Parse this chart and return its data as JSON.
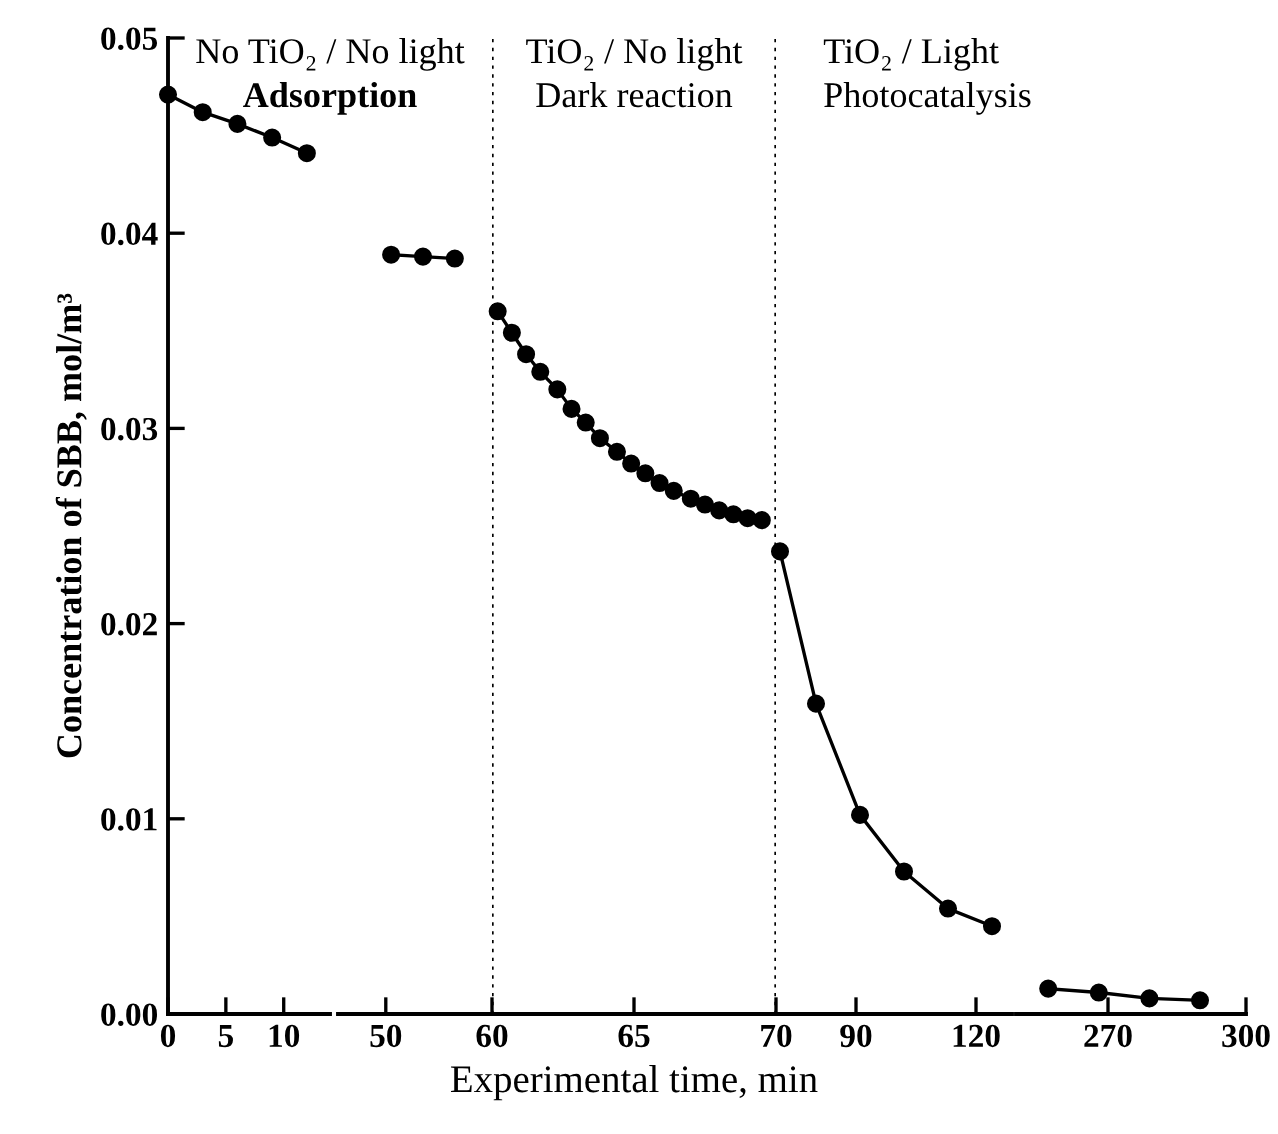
{
  "chart_data": [
    {
      "type": "line",
      "xlim": [
        0,
        14
      ],
      "xticks": [
        0,
        5,
        10
      ],
      "ylim": [
        0,
        0.05
      ],
      "yticks": [
        {
          "value": 0,
          "label": "0.00"
        },
        {
          "value": 0.01,
          "label": "0.01"
        },
        {
          "value": 0.02,
          "label": "0.02"
        },
        {
          "value": 0.03,
          "label": "0.03"
        },
        {
          "value": 0.04,
          "label": "0.04"
        },
        {
          "value": 0.05,
          "label": "0.05"
        }
      ],
      "ylabel": "Concentration of SBB, mol/m³",
      "marker": "circle",
      "grid": false,
      "legend": false,
      "x": [
        0,
        3,
        6,
        9,
        12
      ],
      "series": [
        {
          "color": "#000000",
          "values": [
            0.0471,
            0.0462,
            0.0456,
            0.0449,
            0.0441
          ]
        }
      ],
      "annotations": [
        "No TiO₂ / No light",
        "Adsorption"
      ]
    },
    {
      "type": "line",
      "xlim": [
        45.5,
        60
      ],
      "xticks": [
        50,
        60
      ],
      "ylim": [
        0,
        0.05
      ],
      "tick_labels": "x",
      "marker": "circle",
      "grid": false,
      "legend": false,
      "x": [
        50.5,
        53.5,
        56.5
      ],
      "series": [
        {
          "color": "#000000",
          "values": [
            0.0389,
            0.0388,
            0.0387
          ]
        }
      ]
    },
    {
      "type": "line",
      "xlim": [
        60,
        70
      ],
      "xticks": [
        65,
        70
      ],
      "ylim": [
        0,
        0.05
      ],
      "tick_labels": "x",
      "xlabel": "Experimental time, min",
      "marker": "circle",
      "grid": false,
      "legend": false,
      "x": [
        60.2,
        60.7,
        61.2,
        61.7,
        62.3,
        62.8,
        63.3,
        63.8,
        64.4,
        64.9,
        65.4,
        65.9,
        66.4,
        67.0,
        67.5,
        68.0,
        68.5,
        69.0,
        69.5
      ],
      "series": [
        {
          "color": "#000000",
          "values": [
            0.036,
            0.0349,
            0.0338,
            0.0329,
            0.032,
            0.031,
            0.0303,
            0.0295,
            0.0288,
            0.0282,
            0.0277,
            0.0272,
            0.0268,
            0.0264,
            0.0261,
            0.0258,
            0.0256,
            0.0254,
            0.0253
          ]
        }
      ],
      "ref_lines": [
        {
          "axis": "x",
          "value": 60,
          "color": "#000000",
          "line_style": "dotted"
        },
        {
          "axis": "x",
          "value": 70,
          "color": "#000000",
          "line_style": "dotted"
        }
      ],
      "annotations": [
        "TiO₂ / No light",
        "Dark reaction"
      ]
    },
    {
      "type": "line",
      "xlim": [
        70,
        129
      ],
      "xticks": [
        90,
        120
      ],
      "ylim": [
        0,
        0.05
      ],
      "tick_labels": "x",
      "marker": "circle",
      "grid": false,
      "legend": false,
      "x": [
        71,
        80,
        91,
        102,
        113,
        124
      ],
      "series": [
        {
          "color": "#000000",
          "values": [
            0.0237,
            0.0159,
            0.0102,
            0.0073,
            0.0054,
            0.0045
          ]
        }
      ],
      "annotations": [
        "TiO₂ / Light",
        "Photocatalysis"
      ]
    },
    {
      "type": "line",
      "xlim": [
        250,
        300
      ],
      "xticks": [
        270,
        300
      ],
      "ylim": [
        0,
        0.05
      ],
      "tick_labels": "x",
      "marker": "circle",
      "grid": false,
      "legend": false,
      "x": [
        257,
        268,
        279,
        290
      ],
      "series": [
        {
          "color": "#000000",
          "values": [
            0.0013,
            0.0011,
            0.0008,
            0.0007
          ]
        }
      ]
    }
  ]
}
